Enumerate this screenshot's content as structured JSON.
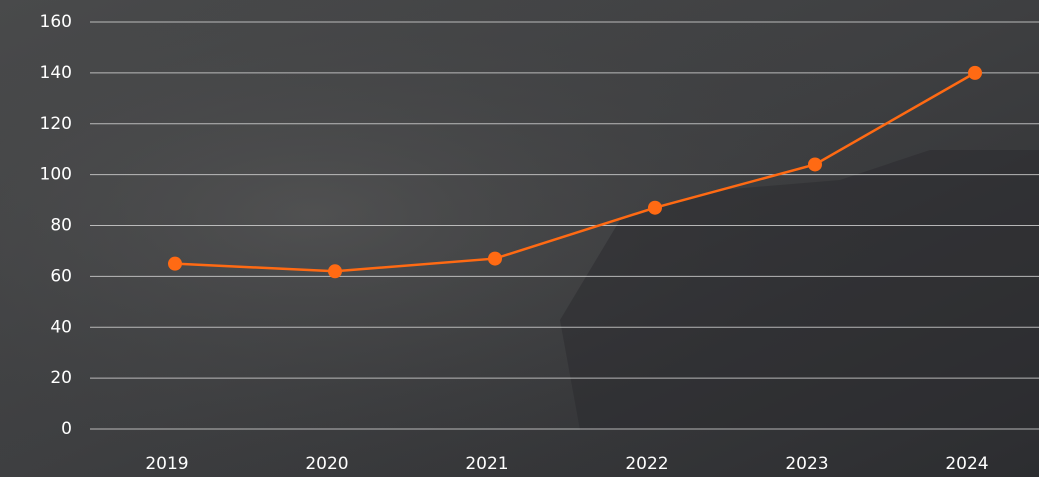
{
  "chart_data": {
    "type": "line",
    "categories": [
      "2019",
      "2020",
      "2021",
      "2022",
      "2023",
      "2024"
    ],
    "values": [
      65,
      62,
      67,
      87,
      104,
      140
    ],
    "color": "#ff6a13",
    "ylim": [
      0,
      160
    ],
    "yticks": [
      0,
      20,
      40,
      60,
      80,
      100,
      120,
      140,
      160
    ],
    "grid": true
  }
}
